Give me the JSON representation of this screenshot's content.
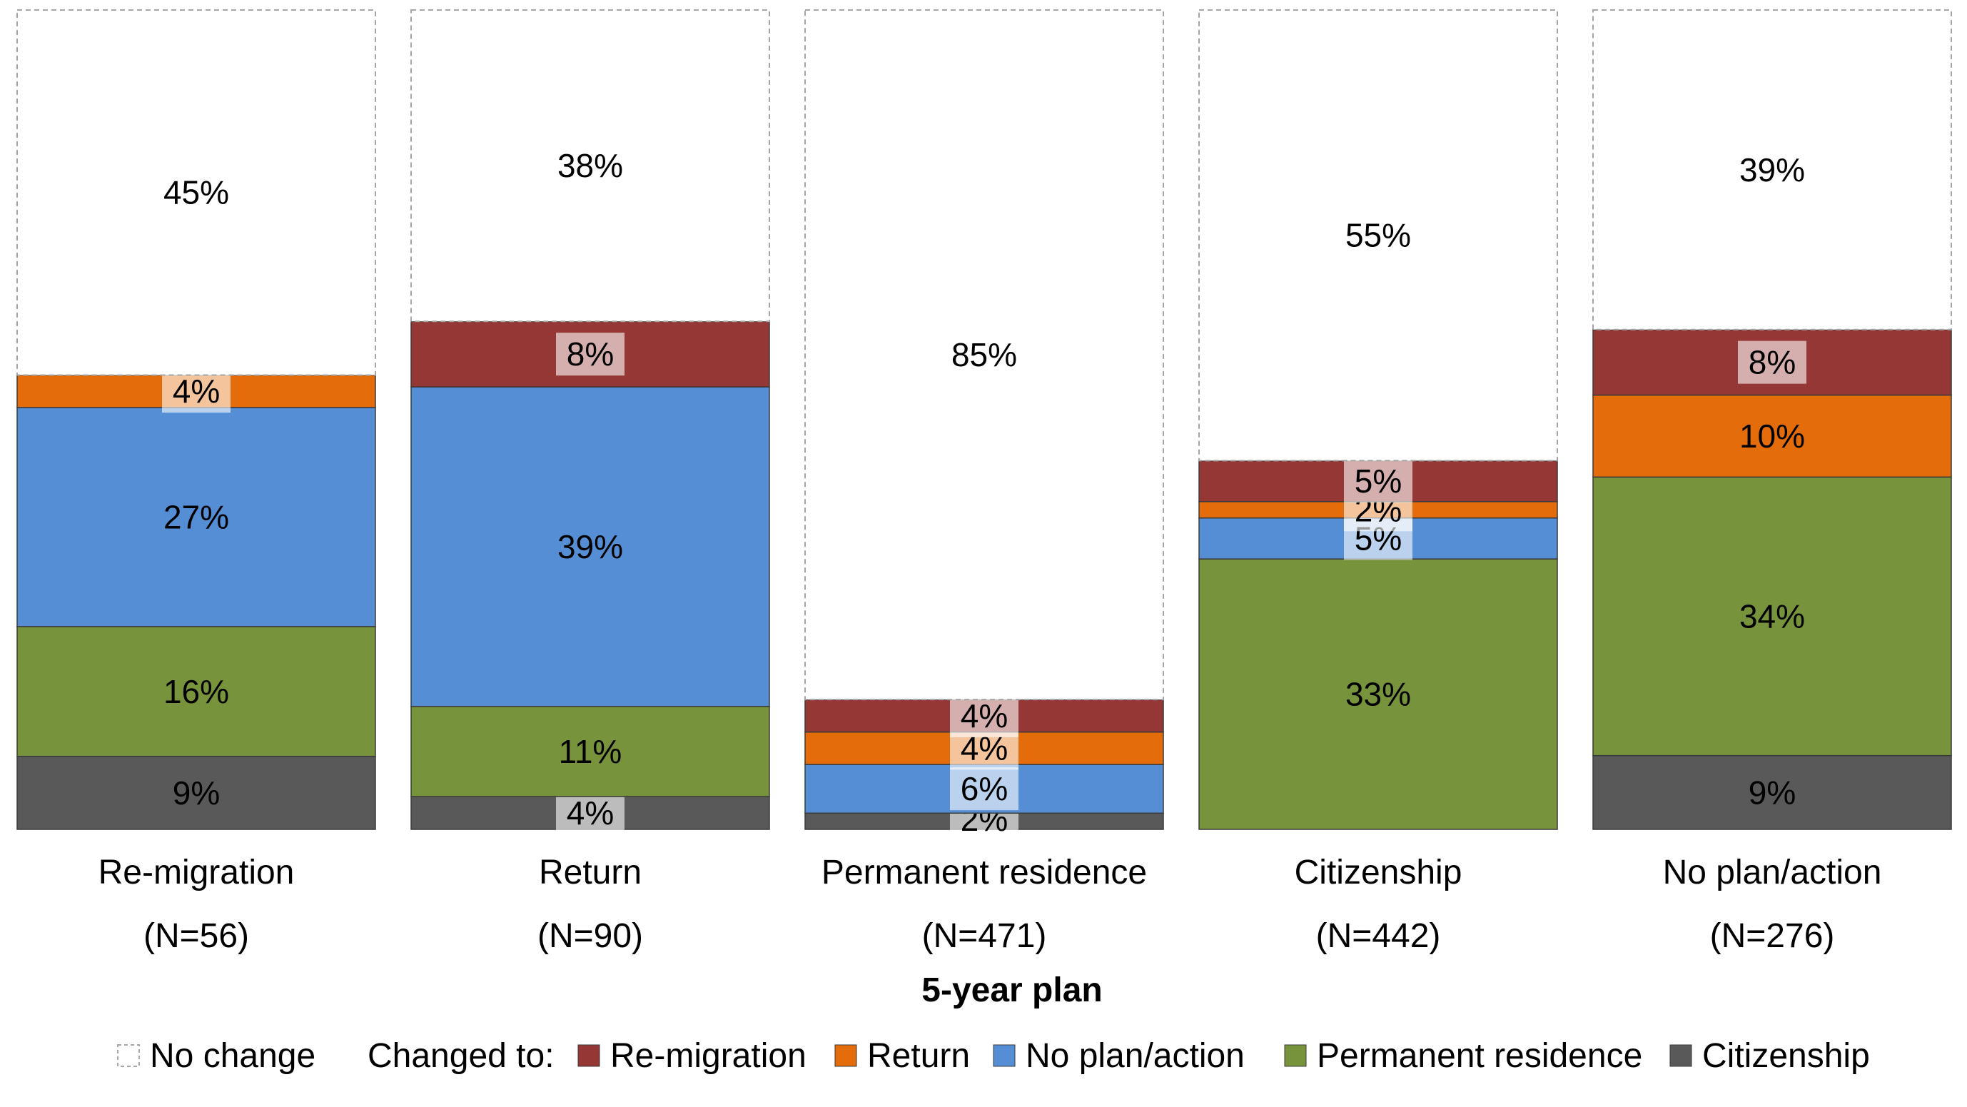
{
  "chart_data": {
    "type": "bar",
    "stacked": true,
    "xlabel": "5-year plan",
    "ylabel": "",
    "ylim": [
      0,
      100
    ],
    "grid": false,
    "legend_position": "bottom",
    "legend_prefix": "Changed to:",
    "categories": [
      {
        "name": "Re-migration",
        "n": "(N=56)"
      },
      {
        "name": "Return",
        "n": "(N=90)"
      },
      {
        "name": "Permanent residence",
        "n": "(N=471)"
      },
      {
        "name": "Citizenship",
        "n": "(N=442)"
      },
      {
        "name": "No plan/action",
        "n": "(N=276)"
      }
    ],
    "series": [
      {
        "name": "Citizenship",
        "color": "#595959",
        "labels": [
          "9%",
          "4%",
          "2%",
          "",
          "9%"
        ],
        "values": [
          9,
          4,
          2,
          0,
          9
        ]
      },
      {
        "name": "Permanent residence",
        "color": "#77933C",
        "labels": [
          "16%",
          "11%",
          "",
          "33%",
          "34%"
        ],
        "values": [
          16,
          11,
          0,
          33,
          34
        ]
      },
      {
        "name": "No plan/action",
        "color": "#558ED5",
        "labels": [
          "27%",
          "39%",
          "6%",
          "5%",
          ""
        ],
        "values": [
          27,
          39,
          6,
          5,
          0
        ]
      },
      {
        "name": "Return",
        "color": "#E46C0A",
        "labels": [
          "4%",
          "",
          "4%",
          "2%",
          "10%"
        ],
        "values": [
          4,
          0,
          4,
          2,
          10
        ]
      },
      {
        "name": "Re-migration",
        "color": "#953735",
        "labels": [
          "",
          "8%",
          "4%",
          "5%",
          "8%"
        ],
        "values": [
          0,
          8,
          4,
          5,
          8
        ]
      },
      {
        "name": "No change",
        "color": "#ffffff",
        "labels": [
          "45%",
          "38%",
          "85%",
          "55%",
          "39%"
        ],
        "values": [
          45,
          38,
          85,
          55,
          39
        ]
      }
    ]
  }
}
